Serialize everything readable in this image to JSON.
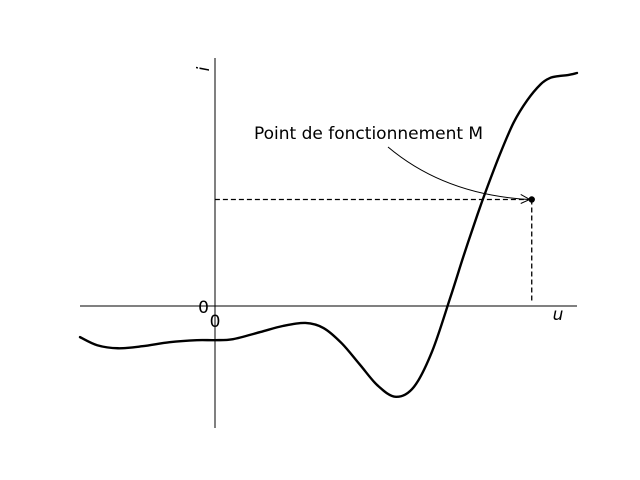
{
  "chart_data": {
    "type": "line",
    "title": "",
    "xlabel": "u",
    "ylabel": "i",
    "x_tick_labels": [
      "0"
    ],
    "y_tick_labels": [
      "0"
    ],
    "grid": false,
    "xlim": [
      -1.49,
      4.0
    ],
    "ylim": [
      -1.09,
      2.25
    ],
    "series": [
      {
        "name": "",
        "color": "#000000",
        "x": [
          -1.49,
          -1.3,
          -1.07,
          -0.8,
          -0.5,
          -0.2,
          0.0,
          0.2,
          0.5,
          0.75,
          1.0,
          1.2,
          1.4,
          1.6,
          1.8,
          2.0,
          2.2,
          2.4,
          2.6,
          2.75,
          2.9,
          3.0,
          3.15,
          3.3,
          3.45,
          3.6,
          3.7,
          3.8,
          3.9,
          4.0
        ],
        "y": [
          -0.36,
          -0.44,
          -0.47,
          -0.45,
          -0.41,
          -0.39,
          -0.39,
          -0.38,
          -0.31,
          -0.25,
          -0.22,
          -0.27,
          -0.42,
          -0.63,
          -0.84,
          -0.95,
          -0.85,
          -0.5,
          0.03,
          0.45,
          0.85,
          1.1,
          1.45,
          1.76,
          1.98,
          2.14,
          2.2,
          2.22,
          2.23,
          2.25
        ]
      }
    ],
    "operating_point": {
      "x": 3.5,
      "y": 1.0,
      "label": "Point de fonctionnement M"
    }
  }
}
